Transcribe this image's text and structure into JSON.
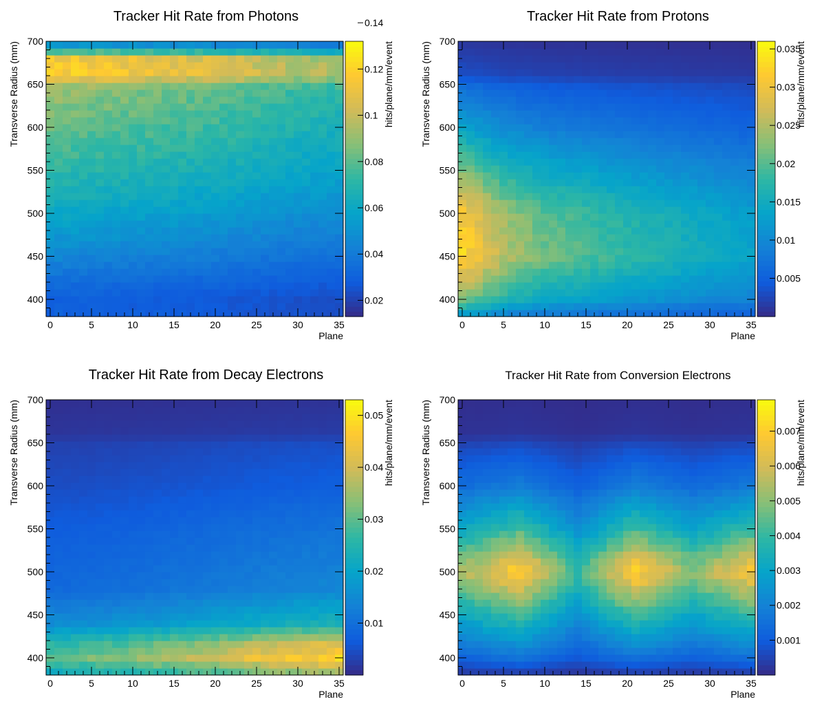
{
  "chart_data": [
    {
      "type": "heatmap",
      "title": "Tracker Hit Rate from Photons",
      "xlabel": "Plane",
      "ylabel": "Transverse Radius (mm)",
      "zlabel": "hits/plane/mm/event",
      "xlim": [
        -0.5,
        35.5
      ],
      "ylim": [
        380,
        700
      ],
      "x_ticks": [
        "0",
        "5",
        "10",
        "15",
        "20",
        "25",
        "30",
        "35"
      ],
      "y_ticks": [
        "400",
        "450",
        "500",
        "550",
        "600",
        "650",
        "700"
      ],
      "zlim": [
        0.013,
        0.132
      ],
      "z_ticks": [
        "0.02",
        "0.04",
        "0.06",
        "0.08",
        "0.1",
        "0.12",
        "0.14"
      ],
      "colormap": [
        "#352a87",
        "#0f5cdd",
        "#1481d6",
        "#06a4ca",
        "#2eb7a4",
        "#87bf77",
        "#d1bb59",
        "#fec832",
        "#f9fb0e"
      ],
      "x_centers": [
        0,
        1,
        2,
        3,
        4,
        5,
        6,
        7,
        8,
        9,
        10,
        11,
        12,
        13,
        14,
        15,
        16,
        17,
        18,
        19,
        20,
        21,
        22,
        23,
        24,
        25,
        26,
        27,
        28,
        29,
        30,
        31,
        32,
        33,
        34,
        35
      ],
      "radius_profile": [
        [
          385,
          0.03
        ],
        [
          400,
          0.03
        ],
        [
          420,
          0.035
        ],
        [
          450,
          0.045
        ],
        [
          500,
          0.06
        ],
        [
          550,
          0.072
        ],
        [
          600,
          0.082
        ],
        [
          640,
          0.09
        ],
        [
          652,
          0.095
        ],
        [
          655,
          0.105
        ],
        [
          660,
          0.12
        ],
        [
          680,
          0.115
        ],
        [
          690,
          0.07
        ],
        [
          700,
          0.04
        ]
      ],
      "plane_profile": [
        [
          0,
          1.0
        ],
        [
          10,
          0.95
        ],
        [
          20,
          0.9
        ],
        [
          30,
          0.82
        ],
        [
          35,
          0.8
        ]
      ]
    },
    {
      "type": "heatmap",
      "title": "Tracker Hit Rate from Protons",
      "xlabel": "Plane",
      "ylabel": "Transverse Radius (mm)",
      "zlabel": "hits/plane/mm/event",
      "xlim": [
        -0.5,
        35.5
      ],
      "ylim": [
        380,
        700
      ],
      "x_ticks": [
        "0",
        "5",
        "10",
        "15",
        "20",
        "25",
        "30",
        "35"
      ],
      "y_ticks": [
        "400",
        "450",
        "500",
        "550",
        "600",
        "650",
        "700"
      ],
      "zlim": [
        0.0,
        0.036
      ],
      "z_ticks": [
        "0.005",
        "0.01",
        "0.015",
        "0.02",
        "0.025",
        "0.03",
        "0.035"
      ],
      "colormap": [
        "#352a87",
        "#0f5cdd",
        "#1481d6",
        "#06a4ca",
        "#2eb7a4",
        "#87bf77",
        "#d1bb59",
        "#fec832",
        "#f9fb0e"
      ],
      "x_centers": [
        0,
        1,
        2,
        3,
        4,
        5,
        6,
        7,
        8,
        9,
        10,
        11,
        12,
        13,
        14,
        15,
        16,
        17,
        18,
        19,
        20,
        21,
        22,
        23,
        24,
        25,
        26,
        27,
        28,
        29,
        30,
        31,
        32,
        33,
        34,
        35
      ],
      "radius_profile": [
        [
          385,
          0.012
        ],
        [
          400,
          0.02
        ],
        [
          450,
          0.03
        ],
        [
          500,
          0.028
        ],
        [
          550,
          0.02
        ],
        [
          600,
          0.012
        ],
        [
          650,
          0.006
        ],
        [
          660,
          0.003
        ],
        [
          700,
          0.001
        ]
      ],
      "plane_profile": [
        [
          0,
          1.1
        ],
        [
          5,
          0.85
        ],
        [
          10,
          0.72
        ],
        [
          20,
          0.6
        ],
        [
          35,
          0.45
        ]
      ]
    },
    {
      "type": "heatmap",
      "title": "Tracker Hit Rate from Decay Electrons",
      "xlabel": "Plane",
      "ylabel": "Transverse Radius (mm)",
      "zlabel": "hits/plane/mm/event",
      "xlim": [
        -0.5,
        35.5
      ],
      "ylim": [
        380,
        700
      ],
      "x_ticks": [
        "0",
        "5",
        "10",
        "15",
        "20",
        "25",
        "30",
        "35"
      ],
      "y_ticks": [
        "400",
        "450",
        "500",
        "550",
        "600",
        "650",
        "700"
      ],
      "zlim": [
        0.0,
        0.053
      ],
      "z_ticks": [
        "0.01",
        "0.02",
        "0.03",
        "0.04",
        "0.05"
      ],
      "colormap": [
        "#352a87",
        "#0f5cdd",
        "#1481d6",
        "#06a4ca",
        "#2eb7a4",
        "#87bf77",
        "#d1bb59",
        "#fec832",
        "#f9fb0e"
      ],
      "x_centers": [
        0,
        1,
        2,
        3,
        4,
        5,
        6,
        7,
        8,
        9,
        10,
        11,
        12,
        13,
        14,
        15,
        16,
        17,
        18,
        19,
        20,
        21,
        22,
        23,
        24,
        25,
        26,
        27,
        28,
        29,
        30,
        31,
        32,
        33,
        34,
        35
      ],
      "radius_profile": [
        [
          385,
          0.03
        ],
        [
          400,
          0.04
        ],
        [
          415,
          0.035
        ],
        [
          440,
          0.02
        ],
        [
          480,
          0.012
        ],
        [
          550,
          0.009
        ],
        [
          600,
          0.006
        ],
        [
          650,
          0.004
        ],
        [
          660,
          0.002
        ],
        [
          700,
          0.001
        ]
      ],
      "plane_profile": [
        [
          0,
          0.75
        ],
        [
          10,
          0.85
        ],
        [
          20,
          1.0
        ],
        [
          30,
          1.15
        ],
        [
          35,
          1.2
        ]
      ]
    },
    {
      "type": "heatmap",
      "title": "Tracker Hit Rate from Conversion Electrons",
      "xlabel": "Plane",
      "ylabel": "Transverse Radius (mm)",
      "zlabel": "hits/plane/mm/event",
      "xlim": [
        -0.5,
        35.5
      ],
      "ylim": [
        380,
        700
      ],
      "x_ticks": [
        "0",
        "5",
        "10",
        "15",
        "20",
        "25",
        "30",
        "35"
      ],
      "y_ticks": [
        "400",
        "450",
        "500",
        "550",
        "600",
        "650",
        "700"
      ],
      "zlim": [
        0.0,
        0.0079
      ],
      "z_ticks": [
        "0.001",
        "0.002",
        "0.003",
        "0.004",
        "0.005",
        "0.006",
        "0.007"
      ],
      "colormap": [
        "#352a87",
        "#0f5cdd",
        "#1481d6",
        "#06a4ca",
        "#2eb7a4",
        "#87bf77",
        "#d1bb59",
        "#fec832",
        "#f9fb0e"
      ],
      "x_centers": [
        0,
        1,
        2,
        3,
        4,
        5,
        6,
        7,
        8,
        9,
        10,
        11,
        12,
        13,
        14,
        15,
        16,
        17,
        18,
        19,
        20,
        21,
        22,
        23,
        24,
        25,
        26,
        27,
        28,
        29,
        30,
        31,
        32,
        33,
        34,
        35
      ],
      "radius_profile": [
        [
          385,
          0.0005
        ],
        [
          400,
          0.0015
        ],
        [
          450,
          0.004
        ],
        [
          500,
          0.0068
        ],
        [
          550,
          0.004
        ],
        [
          600,
          0.0018
        ],
        [
          650,
          0.0006
        ],
        [
          660,
          0.0002
        ],
        [
          700,
          0.0001
        ]
      ],
      "plane_profile": [
        [
          0,
          0.8
        ],
        [
          7,
          1.05
        ],
        [
          14,
          0.6
        ],
        [
          21,
          1.05
        ],
        [
          28,
          0.75
        ],
        [
          35,
          1.0
        ]
      ]
    }
  ]
}
